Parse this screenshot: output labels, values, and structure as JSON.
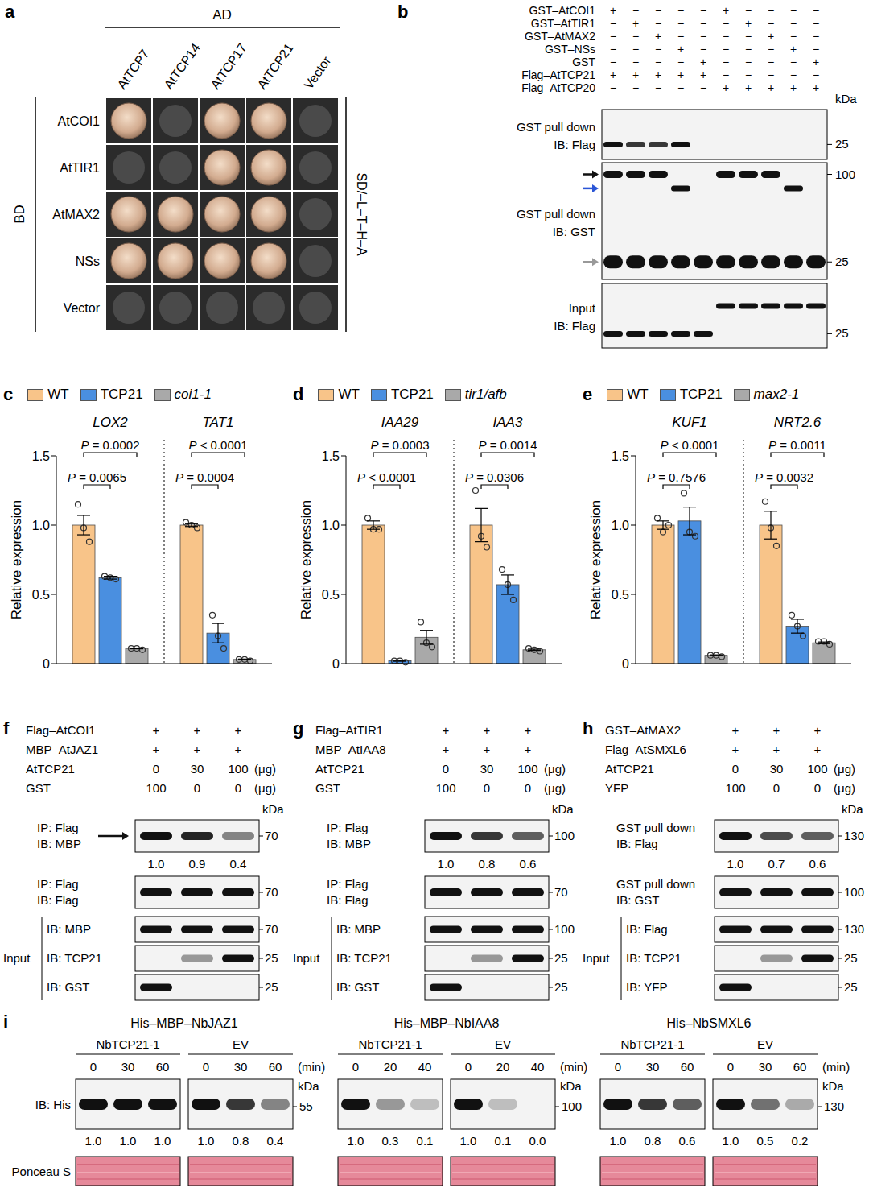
{
  "panel_a": {
    "letter": "a",
    "column_header": "AD",
    "columns": [
      "AtTCP7",
      "AtTCP14",
      "AtTCP17",
      "AtTCP21",
      "Vector"
    ],
    "row_header": "BD",
    "rows": [
      "AtCOI1",
      "AtTIR1",
      "AtMAX2",
      "NSs",
      "Vector"
    ],
    "medium": "SD/–L–T–H–A",
    "growth": [
      [
        true,
        false,
        true,
        true,
        false
      ],
      [
        false,
        false,
        true,
        true,
        false
      ],
      [
        true,
        true,
        true,
        true,
        false
      ],
      [
        true,
        true,
        true,
        true,
        false
      ],
      [
        false,
        false,
        false,
        false,
        false
      ]
    ]
  },
  "panel_b": {
    "letter": "b",
    "rows": [
      {
        "label": "GST–AtCOI1",
        "signs": [
          "+",
          "−",
          "−",
          "−",
          "−",
          "+",
          "−",
          "−",
          "−",
          "−"
        ]
      },
      {
        "label": "GST–AtTIR1",
        "signs": [
          "−",
          "+",
          "−",
          "−",
          "−",
          "−",
          "+",
          "−",
          "−",
          "−"
        ]
      },
      {
        "label": "GST–AtMAX2",
        "signs": [
          "−",
          "−",
          "+",
          "−",
          "−",
          "−",
          "−",
          "+",
          "−",
          "−"
        ]
      },
      {
        "label": "GST–NSs",
        "signs": [
          "−",
          "−",
          "−",
          "+",
          "−",
          "−",
          "−",
          "−",
          "+",
          "−"
        ]
      },
      {
        "label": "GST",
        "signs": [
          "−",
          "−",
          "−",
          "−",
          "+",
          "−",
          "−",
          "−",
          "−",
          "+"
        ]
      },
      {
        "label": "Flag–AtTCP21",
        "signs": [
          "+",
          "+",
          "+",
          "+",
          "+",
          "−",
          "−",
          "−",
          "−",
          "−"
        ]
      },
      {
        "label": "Flag–AtTCP20",
        "signs": [
          "−",
          "−",
          "−",
          "−",
          "−",
          "+",
          "+",
          "+",
          "+",
          "+"
        ]
      }
    ],
    "unit": "kDa",
    "blots": [
      {
        "label": [
          "GST pull down",
          "IB: Flag"
        ],
        "markers": [
          25
        ],
        "bands": [
          [
            1,
            0.8,
            0.8,
            1,
            0,
            0,
            0,
            0,
            0,
            0
          ]
        ]
      },
      {
        "label": [
          "GST pull down",
          "IB: GST"
        ],
        "markers": [
          100,
          25
        ],
        "bands": [
          [
            1,
            1,
            1,
            0,
            0,
            1,
            1,
            1,
            0,
            0
          ],
          [
            0,
            0,
            0,
            1,
            0,
            0,
            0,
            0,
            1,
            0
          ],
          [
            1,
            1,
            1,
            1,
            1,
            1,
            1,
            1,
            1,
            1
          ]
        ]
      },
      {
        "label": [
          "Input",
          "IB: Flag"
        ],
        "markers": [
          25
        ],
        "bands": [
          [
            0,
            0,
            0,
            0,
            0,
            1,
            1,
            1,
            1,
            1
          ],
          [
            1,
            1,
            1,
            1,
            1,
            0,
            0,
            0,
            0,
            0
          ]
        ]
      }
    ]
  },
  "chart_data": [
    {
      "type": "bar",
      "panel": "c",
      "y_label": "Relative expression",
      "ylim": [
        0,
        1.5
      ],
      "yticks": [
        0,
        0.5,
        {
          "value": 1,
          "label": "1.0"
        },
        1.5
      ],
      "tick_labels": "y",
      "categories": [
        "LOX2",
        "TAT1"
      ],
      "series": [
        {
          "name": "WT",
          "color": "#f8c489",
          "values": [
            1.0,
            1.0
          ],
          "errors": [
            0.07,
            0.01
          ],
          "points": [
            [
              1.15,
              0.98,
              0.88
            ],
            [
              1.02,
              1.0,
              0.98
            ]
          ]
        },
        {
          "name": "TCP21",
          "color": "#4a8fe0",
          "values": [
            0.62,
            0.22
          ],
          "errors": [
            0.01,
            0.07
          ],
          "points": [
            [
              0.63,
              0.62,
              0.61
            ],
            [
              0.35,
              0.2,
              0.11
            ]
          ]
        },
        {
          "name": "coi1-1",
          "color": "#a9a9a9",
          "values": [
            0.11,
            0.03
          ],
          "errors": [
            0.003,
            0.003
          ],
          "points": [
            [
              0.11,
              0.11,
              0.1
            ],
            [
              0.03,
              0.03,
              0.02
            ]
          ]
        }
      ],
      "comparisons": [
        {
          "category": "LOX2",
          "from": "WT",
          "to": "coi1-1",
          "label": "P = 0.0002"
        },
        {
          "category": "LOX2",
          "from": "WT",
          "to": "TCP21",
          "label": "P = 0.0065"
        },
        {
          "category": "TAT1",
          "from": "WT",
          "to": "coi1-1",
          "label": "P < 0.0001"
        },
        {
          "category": "TAT1",
          "from": "WT",
          "to": "TCP21",
          "label": "P = 0.0004"
        }
      ]
    },
    {
      "type": "bar",
      "panel": "d",
      "y_label": "Relative expression",
      "ylim": [
        0,
        1.5
      ],
      "yticks": [
        0,
        0.5,
        {
          "value": 1,
          "label": "1.0"
        },
        1.5
      ],
      "tick_labels": "y",
      "categories": [
        "IAA29",
        "IAA3"
      ],
      "series": [
        {
          "name": "WT",
          "color": "#f8c489",
          "values": [
            1.0,
            1.0
          ],
          "errors": [
            0.03,
            0.12
          ],
          "points": [
            [
              1.05,
              0.97,
              0.97
            ],
            [
              1.25,
              0.92,
              0.84
            ]
          ]
        },
        {
          "name": "TCP21",
          "color": "#4a8fe0",
          "values": [
            0.02,
            0.57
          ],
          "errors": [
            0.003,
            0.07
          ],
          "points": [
            [
              0.02,
              0.02,
              0.01
            ],
            [
              0.68,
              0.57,
              0.46
            ]
          ]
        },
        {
          "name": "tir1/afb",
          "color": "#a9a9a9",
          "values": [
            0.19,
            0.1
          ],
          "errors": [
            0.05,
            0.005
          ],
          "points": [
            [
              0.3,
              0.15,
              0.12
            ],
            [
              0.11,
              0.1,
              0.09
            ]
          ]
        }
      ],
      "comparisons": [
        {
          "category": "IAA29",
          "from": "WT",
          "to": "tir1/afb",
          "label": "P = 0.0003"
        },
        {
          "category": "IAA29",
          "from": "WT",
          "to": "TCP21",
          "label": "P < 0.0001"
        },
        {
          "category": "IAA3",
          "from": "WT",
          "to": "tir1/afb",
          "label": "P = 0.0014"
        },
        {
          "category": "IAA3",
          "from": "WT",
          "to": "TCP21",
          "label": "P = 0.0306"
        }
      ]
    },
    {
      "type": "bar",
      "panel": "e",
      "y_label": "Relative expression",
      "ylim": [
        0,
        1.5
      ],
      "yticks": [
        0,
        0.5,
        {
          "value": 1,
          "label": "1.0"
        },
        1.5
      ],
      "tick_labels": "y",
      "categories": [
        "KUF1",
        "NRT2.6"
      ],
      "series": [
        {
          "name": "WT",
          "color": "#f8c489",
          "values": [
            1.0,
            1.0
          ],
          "errors": [
            0.03,
            0.1
          ],
          "points": [
            [
              1.05,
              0.95,
              1.0
            ],
            [
              1.17,
              0.98,
              0.85
            ]
          ]
        },
        {
          "name": "TCP21",
          "color": "#4a8fe0",
          "values": [
            1.03,
            0.27
          ],
          "errors": [
            0.1,
            0.05
          ],
          "points": [
            [
              1.23,
              0.95,
              0.92
            ],
            [
              0.35,
              0.27,
              0.2
            ]
          ]
        },
        {
          "name": "max2-1",
          "color": "#a9a9a9",
          "values": [
            0.06,
            0.15
          ],
          "errors": [
            0.003,
            0.006
          ],
          "points": [
            [
              0.06,
              0.06,
              0.05
            ],
            [
              0.16,
              0.16,
              0.14
            ]
          ]
        }
      ],
      "comparisons": [
        {
          "category": "KUF1",
          "from": "WT",
          "to": "max2-1",
          "label": "P < 0.0001"
        },
        {
          "category": "KUF1",
          "from": "WT",
          "to": "TCP21",
          "label": "P = 0.7576"
        },
        {
          "category": "NRT2.6",
          "from": "WT",
          "to": "max2-1",
          "label": "P = 0.0011"
        },
        {
          "category": "NRT2.6",
          "from": "WT",
          "to": "TCP21",
          "label": "P = 0.0032"
        }
      ]
    }
  ],
  "panel_f": {
    "letter": "f",
    "unit": "kDa",
    "conditions": [
      {
        "label": "Flag–AtCOI1",
        "signs": [
          "+",
          "+",
          "+"
        ]
      },
      {
        "label": "MBP–AtJAZ1",
        "signs": [
          "+",
          "+",
          "+"
        ]
      },
      {
        "label": "AtTCP21",
        "amounts": [
          0,
          30,
          100
        ],
        "unit": "(μg)"
      },
      {
        "label": "GST",
        "amounts": [
          100,
          0,
          0
        ],
        "unit": "(μg)"
      }
    ],
    "blots": [
      {
        "label": [
          "IP: Flag",
          "IB: MBP"
        ],
        "marker": 70,
        "quant": [
          "1.0",
          "0.9",
          "0.4"
        ]
      },
      {
        "label": [
          "IP: Flag",
          "IB: Flag"
        ],
        "marker": 70
      }
    ],
    "input_label": "Input",
    "inputs": [
      {
        "label": "IB: MBP",
        "marker": 70
      },
      {
        "label": "IB: TCP21",
        "marker": 25
      },
      {
        "label": "IB: GST",
        "marker": 25
      }
    ]
  },
  "panel_g": {
    "letter": "g",
    "unit": "kDa",
    "conditions": [
      {
        "label": "Flag–AtTIR1",
        "signs": [
          "+",
          "+",
          "+"
        ]
      },
      {
        "label": "MBP–AtIAA8",
        "signs": [
          "+",
          "+",
          "+"
        ]
      },
      {
        "label": "AtTCP21",
        "amounts": [
          0,
          30,
          100
        ],
        "unit": "(μg)"
      },
      {
        "label": "GST",
        "amounts": [
          100,
          0,
          0
        ],
        "unit": "(μg)"
      }
    ],
    "blots": [
      {
        "label": [
          "IP: Flag",
          "IB: MBP"
        ],
        "marker": 100,
        "quant": [
          "1.0",
          "0.8",
          "0.6"
        ]
      },
      {
        "label": [
          "IP: Flag",
          "IB: Flag"
        ],
        "marker": 70
      }
    ],
    "input_label": "Input",
    "inputs": [
      {
        "label": "IB: MBP",
        "marker": 100
      },
      {
        "label": "IB: TCP21",
        "marker": 25
      },
      {
        "label": "IB: GST",
        "marker": 25
      }
    ]
  },
  "panel_h": {
    "letter": "h",
    "unit": "kDa",
    "conditions": [
      {
        "label": "GST–AtMAX2",
        "signs": [
          "+",
          "+",
          "+"
        ]
      },
      {
        "label": "Flag–AtSMXL6",
        "signs": [
          "+",
          "+",
          "+"
        ]
      },
      {
        "label": "AtTCP21",
        "amounts": [
          0,
          30,
          100
        ],
        "unit": "(μg)"
      },
      {
        "label": "YFP",
        "amounts": [
          100,
          0,
          0
        ],
        "unit": "(μg)"
      }
    ],
    "blots": [
      {
        "label": [
          "GST pull down",
          "IB: Flag"
        ],
        "marker": 130,
        "quant": [
          "1.0",
          "0.7",
          "0.6"
        ]
      },
      {
        "label": [
          "GST pull down",
          "IB: GST"
        ],
        "marker": 100
      }
    ],
    "input_label": "Input",
    "inputs": [
      {
        "label": "IB: Flag",
        "marker": 130
      },
      {
        "label": "IB: TCP21",
        "marker": 25
      },
      {
        "label": "IB: YFP",
        "marker": 25
      }
    ]
  },
  "panel_i": {
    "letter": "i",
    "row_labels": [
      "IB: His",
      "Ponceau S"
    ],
    "time_unit": "(min)",
    "unit": "kDa",
    "groups": [
      "NbTCP21-1",
      "EV"
    ],
    "blocks": [
      {
        "title": "His–MBP–NbJAZ1",
        "times": [
          0,
          30,
          60
        ],
        "marker": 55,
        "quant": [
          [
            "1.0",
            "1.0",
            "1.0"
          ],
          [
            "1.0",
            "0.8",
            "0.4"
          ]
        ]
      },
      {
        "title": "His–MBP–NbIAA8",
        "times": [
          0,
          20,
          40
        ],
        "marker": 100,
        "quant": [
          [
            "1.0",
            "0.3",
            "0.1"
          ],
          [
            "1.0",
            "0.1",
            "0.0"
          ]
        ]
      },
      {
        "title": "His–NbSMXL6",
        "times": [
          0,
          30,
          60
        ],
        "marker": 130,
        "quant": [
          [
            "1.0",
            "0.8",
            "0.6"
          ],
          [
            "1.0",
            "0.5",
            "0.2"
          ]
        ]
      }
    ]
  }
}
